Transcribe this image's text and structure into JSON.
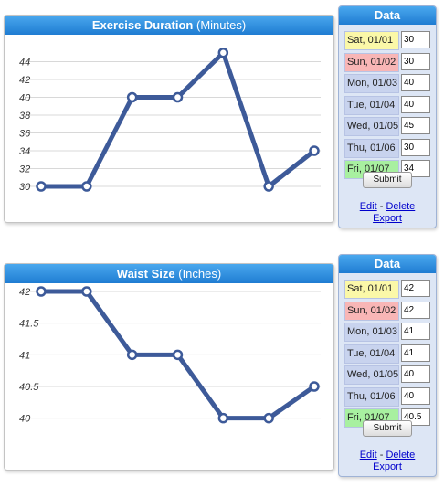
{
  "colors": {
    "line": "#3d5a99",
    "title_bar": "#2f8fe0",
    "weekend_sat": "#fbf8a8",
    "weekend_sun": "#f8b6b6",
    "fri_highlight": "#a8f0a0",
    "data_panel_bg": "#dde6f5"
  },
  "charts": [
    {
      "title": "Exercise Duration",
      "unit": "(Minutes)",
      "chart_data": {
        "type": "line",
        "title": "Exercise Duration (Minutes)",
        "categories": [
          "Sat, 01/01",
          "Sun, 01/02",
          "Mon, 01/03",
          "Tue, 01/04",
          "Wed, 01/05",
          "Thu, 01/06",
          "Fri, 01/07"
        ],
        "series": [
          {
            "values": [
              30,
              30,
              40,
              40,
              45,
              30,
              34
            ]
          }
        ],
        "ylim": [
          30,
          46
        ],
        "yticks": [
          "30",
          "32",
          "34",
          "36",
          "38",
          "40",
          "42",
          "44"
        ],
        "grid": true,
        "legend": "none"
      }
    },
    {
      "title": "Waist Size",
      "unit": "(Inches)",
      "chart_data": {
        "type": "line",
        "title": "Waist Size (Inches)",
        "categories": [
          "Sat, 01/01",
          "Sun, 01/02",
          "Mon, 01/03",
          "Tue, 01/04",
          "Wed, 01/05",
          "Thu, 01/06",
          "Fri, 01/07"
        ],
        "series": [
          {
            "values": [
              42,
              42,
              41,
              41,
              40,
              40,
              40.5
            ]
          }
        ],
        "ylim": [
          39.75,
          42
        ],
        "yticks": [
          "40",
          "40.5",
          "41",
          "41.5",
          "42"
        ],
        "grid": true,
        "legend": "none"
      }
    }
  ],
  "data_panels": [
    {
      "title": "Data",
      "rows": [
        {
          "label": "Sat, 01/01",
          "value": "30"
        },
        {
          "label": "Sun, 01/02",
          "value": "30"
        },
        {
          "label": "Mon, 01/03",
          "value": "40"
        },
        {
          "label": "Tue, 01/04",
          "value": "40"
        },
        {
          "label": "Wed, 01/05",
          "value": "45"
        },
        {
          "label": "Thu, 01/06",
          "value": "30"
        },
        {
          "label": "Fri, 01/07",
          "value": "34"
        }
      ],
      "submit_label": "Submit",
      "edit_label": "Edit",
      "separator": " - ",
      "delete_label": "Delete",
      "export_label": "Export"
    },
    {
      "title": "Data",
      "rows": [
        {
          "label": "Sat, 01/01",
          "value": "42"
        },
        {
          "label": "Sun, 01/02",
          "value": "42"
        },
        {
          "label": "Mon, 01/03",
          "value": "41"
        },
        {
          "label": "Tue, 01/04",
          "value": "41"
        },
        {
          "label": "Wed, 01/05",
          "value": "40"
        },
        {
          "label": "Thu, 01/06",
          "value": "40"
        },
        {
          "label": "Fri, 01/07",
          "value": "40.5"
        }
      ],
      "submit_label": "Submit",
      "edit_label": "Edit",
      "separator": " - ",
      "delete_label": "Delete",
      "export_label": "Export"
    }
  ]
}
